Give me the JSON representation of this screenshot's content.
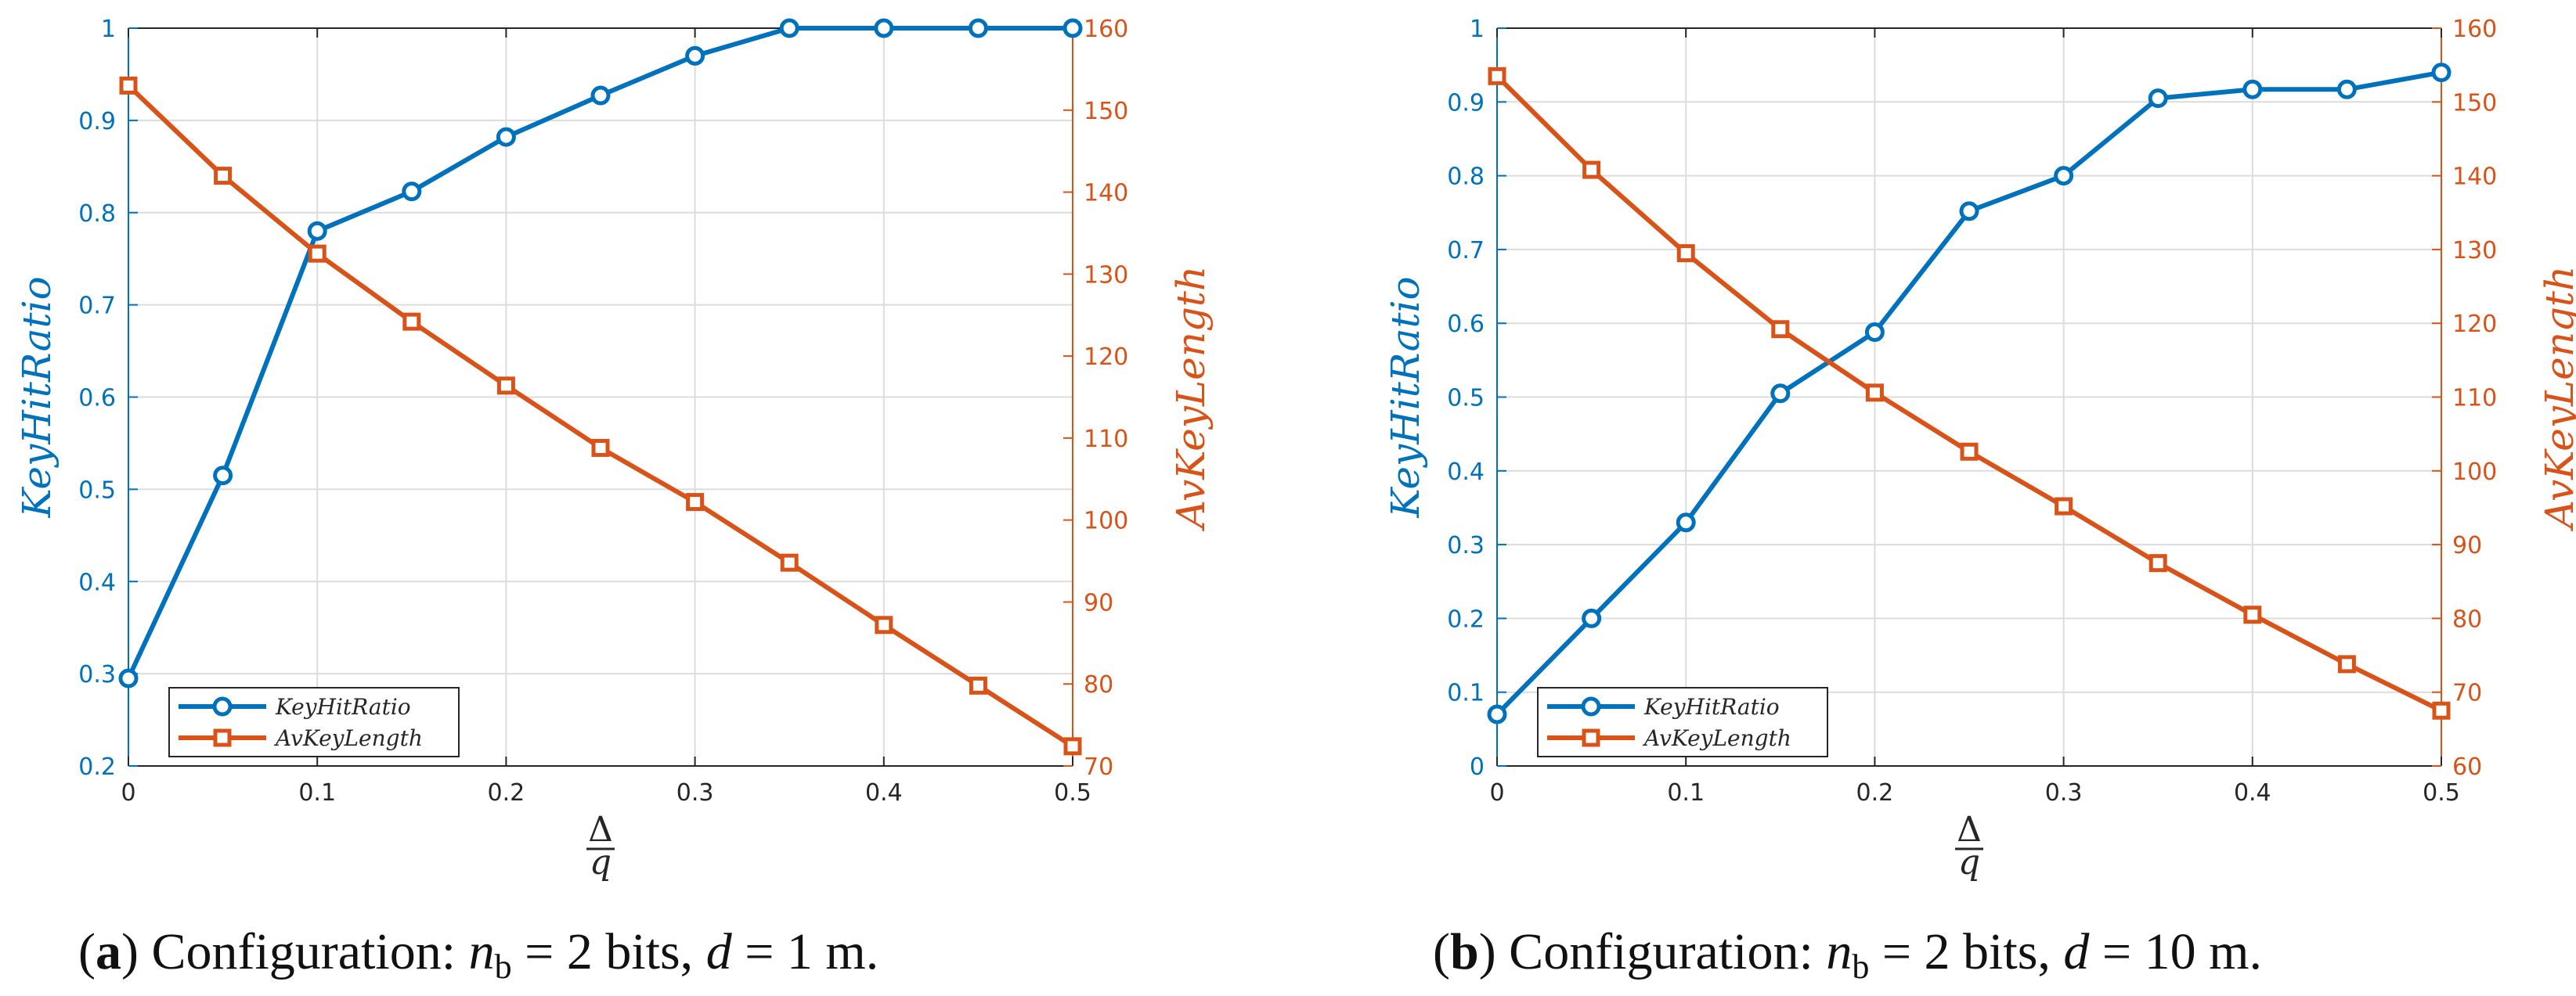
{
  "colors": {
    "blue": "#0072BD",
    "orange": "#D95319",
    "axis": "#262626",
    "grid": "#dcdcdc"
  },
  "chart_data": [
    {
      "type": "line",
      "caption": {
        "label": "a",
        "text": ") Configuration: ",
        "var": "n",
        "sub": "b",
        "eq": " = 2 bits, ",
        "var2": "d",
        "eq2": " = 1 m."
      },
      "xlabel": {
        "top": "Δ",
        "bottom": "q"
      },
      "x": [
        0,
        0.05,
        0.1,
        0.15,
        0.2,
        0.25,
        0.3,
        0.35,
        0.4,
        0.45,
        0.5
      ],
      "xlim": [
        0,
        0.5
      ],
      "xticks": [
        "0",
        "0.1",
        "0.2",
        "0.3",
        "0.4",
        "0.5"
      ],
      "ylim_left": [
        0.2,
        1
      ],
      "yticks_left": [
        "0.2",
        "0.3",
        "0.4",
        "0.5",
        "0.6",
        "0.7",
        "0.8",
        "0.9",
        "1"
      ],
      "ylim_right": [
        70,
        160
      ],
      "yticks_right": [
        "70",
        "80",
        "90",
        "100",
        "110",
        "120",
        "130",
        "140",
        "150",
        "160"
      ],
      "ylabel_left": "KeyHitRatio",
      "ylabel_right": "AvKeyLength",
      "legend_position": "bottom-left",
      "series": [
        {
          "name": "KeyHitRatio",
          "axis": "left",
          "marker": "circle",
          "color": "#0072BD",
          "values": [
            0.295,
            0.515,
            0.78,
            0.823,
            0.882,
            0.927,
            0.97,
            1,
            1,
            1,
            1
          ]
        },
        {
          "name": "AvKeyLength",
          "axis": "right",
          "marker": "square",
          "color": "#D95319",
          "values": [
            153,
            142,
            132.5,
            124.2,
            116.4,
            108.8,
            102.2,
            94.8,
            87.2,
            79.8,
            72.4
          ]
        }
      ]
    },
    {
      "type": "line",
      "caption": {
        "label": "b",
        "text": ") Configuration: ",
        "var": "n",
        "sub": "b",
        "eq": " = 2 bits, ",
        "var2": "d",
        "eq2": " = 10 m."
      },
      "xlabel": {
        "top": "Δ",
        "bottom": "q"
      },
      "x": [
        0,
        0.05,
        0.1,
        0.15,
        0.2,
        0.25,
        0.3,
        0.35,
        0.4,
        0.45,
        0.5
      ],
      "xlim": [
        0,
        0.5
      ],
      "xticks": [
        "0",
        "0.1",
        "0.2",
        "0.3",
        "0.4",
        "0.5"
      ],
      "ylim_left": [
        0,
        1
      ],
      "yticks_left": [
        "0",
        "0.1",
        "0.2",
        "0.3",
        "0.4",
        "0.5",
        "0.6",
        "0.7",
        "0.8",
        "0.9",
        "1"
      ],
      "ylim_right": [
        60,
        160
      ],
      "yticks_right": [
        "60",
        "70",
        "80",
        "90",
        "100",
        "110",
        "120",
        "130",
        "140",
        "150",
        "160"
      ],
      "ylabel_left": "KeyHitRatio",
      "ylabel_right": "AvKeyLength",
      "legend_position": "bottom-left",
      "series": [
        {
          "name": "KeyHitRatio",
          "axis": "left",
          "marker": "circle",
          "color": "#0072BD",
          "values": [
            0.07,
            0.2,
            0.33,
            0.505,
            0.588,
            0.752,
            0.8,
            0.905,
            0.917,
            0.917,
            0.94
          ]
        },
        {
          "name": "AvKeyLength",
          "axis": "right",
          "marker": "square",
          "color": "#D95319",
          "values": [
            153.5,
            140.8,
            129.5,
            119.2,
            110.6,
            102.6,
            95.2,
            87.5,
            80.5,
            73.8,
            67.5
          ]
        }
      ]
    }
  ]
}
